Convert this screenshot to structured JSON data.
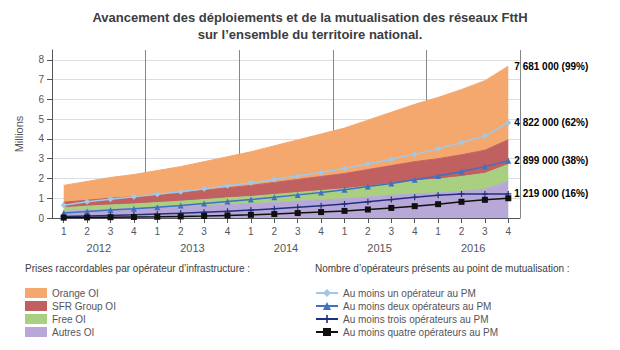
{
  "chart_data": {
    "type": "area",
    "title": "Avancement des déploiements et de la mutualisation des réseaux FttH\nsur l’ensemble du territoire national.",
    "y_label": "Millions",
    "categories": [
      "1",
      "2",
      "3",
      "4",
      "1",
      "2",
      "3",
      "4",
      "1",
      "2",
      "3",
      "4",
      "1",
      "2",
      "3",
      "4",
      "1",
      "2",
      "3",
      "4"
    ],
    "x_groups": [
      "2012",
      "2013",
      "2014",
      "2015",
      "2016"
    ],
    "ylim": [
      0,
      8.5
    ],
    "yticks": [
      0,
      1,
      2,
      3,
      4,
      5,
      6,
      7,
      8
    ],
    "grid": true,
    "stacked": true,
    "legend": "bottom",
    "legend_titles": [
      "Prises raccordables par opérateur d’infrastructure :",
      "Nombre d’opérateurs présents au point de mutualisation :"
    ],
    "series": [
      {
        "name": "Orange OI",
        "type": "area",
        "color": "#F5A86E",
        "values": [
          0.85,
          0.95,
          1.05,
          1.12,
          1.22,
          1.32,
          1.45,
          1.57,
          1.7,
          1.85,
          2.0,
          2.15,
          2.3,
          2.5,
          2.7,
          2.9,
          3.1,
          3.3,
          3.52,
          3.72
        ]
      },
      {
        "name": "SFR Group OI",
        "type": "area",
        "color": "#C06060",
        "values": [
          0.28,
          0.3,
          0.34,
          0.37,
          0.4,
          0.43,
          0.47,
          0.51,
          0.56,
          0.61,
          0.66,
          0.71,
          0.77,
          0.84,
          0.9,
          0.97,
          1.03,
          1.1,
          1.17,
          1.25
        ]
      },
      {
        "name": "Free OI",
        "type": "area",
        "color": "#A8D080",
        "values": [
          0.18,
          0.2,
          0.22,
          0.24,
          0.26,
          0.28,
          0.31,
          0.34,
          0.37,
          0.4,
          0.43,
          0.47,
          0.51,
          0.55,
          0.6,
          0.65,
          0.7,
          0.75,
          0.8,
          0.86
        ]
      },
      {
        "name": "Autres OI",
        "type": "area",
        "color": "#B8A8D8",
        "values": [
          0.34,
          0.4,
          0.44,
          0.47,
          0.52,
          0.57,
          0.62,
          0.68,
          0.72,
          0.79,
          0.86,
          0.92,
          0.97,
          1.06,
          1.15,
          1.23,
          1.27,
          1.35,
          1.46,
          1.851
        ]
      },
      {
        "name": "Au moins un opérateur au PM",
        "type": "line",
        "color": "#A0C8E8",
        "marker": "diamond",
        "values": [
          0.65,
          0.82,
          0.95,
          1.07,
          1.2,
          1.33,
          1.48,
          1.63,
          1.78,
          1.95,
          2.13,
          2.3,
          2.5,
          2.73,
          2.97,
          3.22,
          3.5,
          3.82,
          4.15,
          4.822
        ]
      },
      {
        "name": "Au moins deux opérateurs au PM",
        "type": "line",
        "color": "#4070C0",
        "marker": "triangle",
        "values": [
          0.25,
          0.33,
          0.4,
          0.47,
          0.55,
          0.63,
          0.73,
          0.83,
          0.93,
          1.05,
          1.17,
          1.29,
          1.43,
          1.59,
          1.75,
          1.93,
          2.12,
          2.35,
          2.6,
          2.899
        ]
      },
      {
        "name": "Au moins trois opérateurs au PM",
        "type": "line",
        "color": "#203080",
        "marker": "plus",
        "values": [
          0.07,
          0.1,
          0.13,
          0.16,
          0.2,
          0.24,
          0.29,
          0.34,
          0.4,
          0.47,
          0.54,
          0.62,
          0.71,
          0.82,
          0.93,
          1.05,
          1.15,
          1.22,
          1.22,
          1.219
        ]
      },
      {
        "name": "Au moins quatre opérateurs au PM",
        "type": "line",
        "color": "#101010",
        "marker": "square",
        "values": [
          0.02,
          0.03,
          0.04,
          0.05,
          0.06,
          0.08,
          0.1,
          0.13,
          0.16,
          0.2,
          0.25,
          0.3,
          0.36,
          0.43,
          0.51,
          0.6,
          0.7,
          0.82,
          0.92,
          1.0
        ]
      }
    ],
    "annotations": [
      {
        "series": "Orange OI",
        "text": "7 681 000 (99%)"
      },
      {
        "series": "Au moins un opérateur au PM",
        "text": "4 822 000 (62%)"
      },
      {
        "series": "Au moins deux opérateurs au PM",
        "text": "2 899 000 (38%)"
      },
      {
        "series": "Au moins trois opérateurs au PM",
        "text": "1 219 000 (16%)"
      }
    ]
  }
}
